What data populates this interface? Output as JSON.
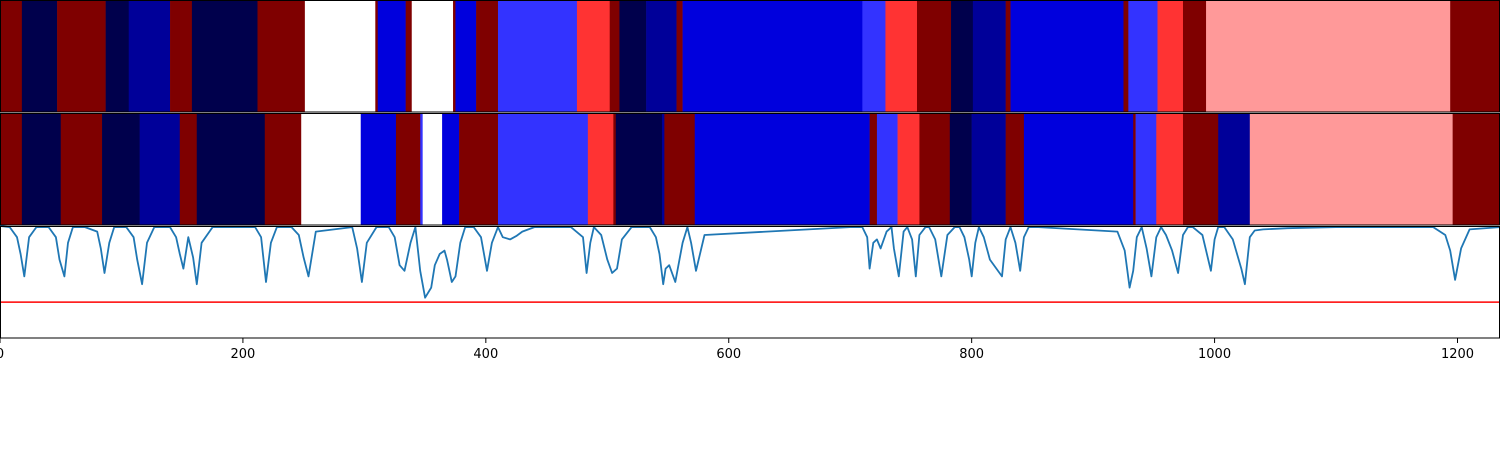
{
  "chart_data": {
    "type": "heatmap",
    "xlim": [
      0,
      1235
    ],
    "x_ticks": [
      {
        "value": 0,
        "label": "0"
      },
      {
        "value": 200,
        "label": "200"
      },
      {
        "value": 400,
        "label": "400"
      },
      {
        "value": 600,
        "label": "600"
      },
      {
        "value": 800,
        "label": "800"
      },
      {
        "value": 1000,
        "label": "1000"
      },
      {
        "value": 1200,
        "label": "1200"
      }
    ],
    "palette": {
      "A": "#7f0000",
      "B": "#00004c",
      "C": "#000099",
      "D": "#0000dd",
      "E": "#3333ff",
      "F": "#ff3333",
      "G": "#ff9999",
      "H": "#ffffff"
    },
    "segment_rows": [
      {
        "row": 1,
        "segments": [
          {
            "start": 0,
            "end": 18,
            "class": "A"
          },
          {
            "start": 18,
            "end": 47,
            "class": "B"
          },
          {
            "start": 47,
            "end": 87,
            "class": "A"
          },
          {
            "start": 87,
            "end": 106,
            "class": "B"
          },
          {
            "start": 106,
            "end": 140,
            "class": "C"
          },
          {
            "start": 140,
            "end": 158,
            "class": "A"
          },
          {
            "start": 158,
            "end": 212,
            "class": "B"
          },
          {
            "start": 212,
            "end": 251,
            "class": "A"
          },
          {
            "start": 251,
            "end": 309,
            "class": "H"
          },
          {
            "start": 309,
            "end": 311,
            "class": "A"
          },
          {
            "start": 311,
            "end": 334,
            "class": "D"
          },
          {
            "start": 334,
            "end": 339,
            "class": "A"
          },
          {
            "start": 339,
            "end": 373,
            "class": "H"
          },
          {
            "start": 373,
            "end": 375,
            "class": "A"
          },
          {
            "start": 375,
            "end": 392,
            "class": "D"
          },
          {
            "start": 392,
            "end": 410,
            "class": "A"
          },
          {
            "start": 410,
            "end": 475,
            "class": "E"
          },
          {
            "start": 475,
            "end": 502,
            "class": "F"
          },
          {
            "start": 502,
            "end": 510,
            "class": "A"
          },
          {
            "start": 510,
            "end": 532,
            "class": "B"
          },
          {
            "start": 532,
            "end": 557,
            "class": "C"
          },
          {
            "start": 557,
            "end": 562,
            "class": "A"
          },
          {
            "start": 562,
            "end": 710,
            "class": "D"
          },
          {
            "start": 710,
            "end": 729,
            "class": "E"
          },
          {
            "start": 729,
            "end": 755,
            "class": "F"
          },
          {
            "start": 755,
            "end": 783,
            "class": "A"
          },
          {
            "start": 783,
            "end": 801,
            "class": "B"
          },
          {
            "start": 801,
            "end": 828,
            "class": "C"
          },
          {
            "start": 828,
            "end": 832,
            "class": "A"
          },
          {
            "start": 832,
            "end": 925,
            "class": "D"
          },
          {
            "start": 925,
            "end": 929,
            "class": "A"
          },
          {
            "start": 929,
            "end": 953,
            "class": "E"
          },
          {
            "start": 953,
            "end": 974,
            "class": "F"
          },
          {
            "start": 974,
            "end": 993,
            "class": "A"
          },
          {
            "start": 993,
            "end": 1194,
            "class": "G"
          },
          {
            "start": 1194,
            "end": 1235,
            "class": "A"
          }
        ]
      },
      {
        "row": 2,
        "segments": [
          {
            "start": 0,
            "end": 18,
            "class": "A"
          },
          {
            "start": 18,
            "end": 50,
            "class": "B"
          },
          {
            "start": 50,
            "end": 84,
            "class": "A"
          },
          {
            "start": 84,
            "end": 115,
            "class": "B"
          },
          {
            "start": 115,
            "end": 148,
            "class": "C"
          },
          {
            "start": 148,
            "end": 162,
            "class": "A"
          },
          {
            "start": 162,
            "end": 218,
            "class": "B"
          },
          {
            "start": 218,
            "end": 248,
            "class": "A"
          },
          {
            "start": 248,
            "end": 297,
            "class": "H"
          },
          {
            "start": 297,
            "end": 326,
            "class": "D"
          },
          {
            "start": 326,
            "end": 346,
            "class": "A"
          },
          {
            "start": 346,
            "end": 348,
            "class": "E"
          },
          {
            "start": 348,
            "end": 364,
            "class": "H"
          },
          {
            "start": 364,
            "end": 378,
            "class": "D"
          },
          {
            "start": 378,
            "end": 410,
            "class": "A"
          },
          {
            "start": 410,
            "end": 484,
            "class": "E"
          },
          {
            "start": 484,
            "end": 505,
            "class": "F"
          },
          {
            "start": 505,
            "end": 507,
            "class": "A"
          },
          {
            "start": 507,
            "end": 545,
            "class": "B"
          },
          {
            "start": 545,
            "end": 547,
            "class": "C"
          },
          {
            "start": 547,
            "end": 572,
            "class": "A"
          },
          {
            "start": 572,
            "end": 716,
            "class": "D"
          },
          {
            "start": 716,
            "end": 722,
            "class": "A"
          },
          {
            "start": 722,
            "end": 739,
            "class": "E"
          },
          {
            "start": 739,
            "end": 757,
            "class": "F"
          },
          {
            "start": 757,
            "end": 782,
            "class": "A"
          },
          {
            "start": 782,
            "end": 800,
            "class": "B"
          },
          {
            "start": 800,
            "end": 828,
            "class": "C"
          },
          {
            "start": 828,
            "end": 843,
            "class": "A"
          },
          {
            "start": 843,
            "end": 933,
            "class": "D"
          },
          {
            "start": 933,
            "end": 935,
            "class": "A"
          },
          {
            "start": 935,
            "end": 952,
            "class": "E"
          },
          {
            "start": 952,
            "end": 974,
            "class": "F"
          },
          {
            "start": 974,
            "end": 1003,
            "class": "A"
          },
          {
            "start": 1003,
            "end": 1029,
            "class": "C"
          },
          {
            "start": 1029,
            "end": 1196,
            "class": "G"
          },
          {
            "start": 1196,
            "end": 1235,
            "class": "A"
          }
        ]
      }
    ],
    "line_panel": {
      "ylim": [
        0,
        1
      ],
      "line_color": "#1f77b4",
      "threshold": {
        "value": 0.32,
        "color": "#ff0000"
      },
      "baseline": 1.0,
      "x": [
        0,
        8,
        14,
        17,
        20,
        24,
        30,
        40,
        46,
        49,
        53,
        56,
        60,
        70,
        80,
        83,
        86,
        90,
        94,
        104,
        110,
        113,
        117,
        121,
        127,
        140,
        145,
        148,
        151,
        155,
        159,
        162,
        166,
        175,
        210,
        215,
        219,
        223,
        228,
        240,
        246,
        250,
        254,
        260,
        290,
        294,
        298,
        302,
        310,
        320,
        325,
        329,
        333,
        338,
        342,
        346,
        350,
        355,
        358,
        362,
        366,
        368,
        372,
        375,
        379,
        383,
        390,
        396,
        401,
        405,
        410,
        414,
        420,
        425,
        430,
        440,
        470,
        480,
        483,
        486,
        489,
        495,
        500,
        504,
        508,
        512,
        520,
        535,
        540,
        543,
        546,
        548,
        551,
        556,
        562,
        566,
        569,
        573,
        580,
        700,
        710,
        714,
        716,
        719,
        722,
        725,
        730,
        734,
        736,
        740,
        744,
        747,
        751,
        754,
        757,
        762,
        765,
        770,
        775,
        780,
        786,
        790,
        794,
        798,
        800,
        803,
        806,
        810,
        815,
        825,
        828,
        832,
        836,
        840,
        843,
        847,
        855,
        920,
        926,
        930,
        933,
        936,
        940,
        944,
        948,
        952,
        956,
        960,
        965,
        970,
        974,
        978,
        982,
        990,
        997,
        1000,
        1003,
        1008,
        1015,
        1022,
        1025,
        1029,
        1033,
        1040,
        1060,
        1100,
        1180,
        1190,
        1194,
        1198,
        1203,
        1210,
        1235
      ],
      "y": [
        1.0,
        0.99,
        0.9,
        0.75,
        0.55,
        0.9,
        0.99,
        0.99,
        0.9,
        0.7,
        0.55,
        0.85,
        0.99,
        0.99,
        0.95,
        0.8,
        0.58,
        0.85,
        0.99,
        0.99,
        0.9,
        0.7,
        0.48,
        0.85,
        0.99,
        0.99,
        0.9,
        0.75,
        0.62,
        0.9,
        0.72,
        0.48,
        0.85,
        0.99,
        0.99,
        0.9,
        0.5,
        0.85,
        0.99,
        0.99,
        0.92,
        0.72,
        0.55,
        0.95,
        0.99,
        0.8,
        0.5,
        0.85,
        0.99,
        0.99,
        0.9,
        0.65,
        0.6,
        0.85,
        0.99,
        0.6,
        0.36,
        0.45,
        0.65,
        0.75,
        0.78,
        0.7,
        0.5,
        0.55,
        0.85,
        0.99,
        0.99,
        0.9,
        0.6,
        0.85,
        0.99,
        0.9,
        0.88,
        0.91,
        0.95,
        0.99,
        0.99,
        0.9,
        0.58,
        0.85,
        0.99,
        0.92,
        0.7,
        0.58,
        0.62,
        0.88,
        0.99,
        0.99,
        0.9,
        0.75,
        0.48,
        0.62,
        0.65,
        0.5,
        0.85,
        0.99,
        0.85,
        0.6,
        0.92,
        0.99,
        0.99,
        0.9,
        0.62,
        0.85,
        0.88,
        0.8,
        0.95,
        0.99,
        0.8,
        0.55,
        0.95,
        0.99,
        0.88,
        0.55,
        0.92,
        0.99,
        0.99,
        0.88,
        0.55,
        0.92,
        0.99,
        0.99,
        0.9,
        0.7,
        0.55,
        0.85,
        0.99,
        0.9,
        0.7,
        0.55,
        0.88,
        0.99,
        0.85,
        0.6,
        0.9,
        0.99,
        0.99,
        0.95,
        0.78,
        0.45,
        0.6,
        0.9,
        0.99,
        0.8,
        0.55,
        0.9,
        0.99,
        0.92,
        0.78,
        0.58,
        0.92,
        0.99,
        0.99,
        0.92,
        0.6,
        0.88,
        0.99,
        0.99,
        0.88,
        0.62,
        0.48,
        0.9,
        0.96,
        0.97,
        0.98,
        0.99,
        0.99,
        0.92,
        0.78,
        0.52,
        0.8,
        0.97,
        0.99
      ]
    }
  }
}
